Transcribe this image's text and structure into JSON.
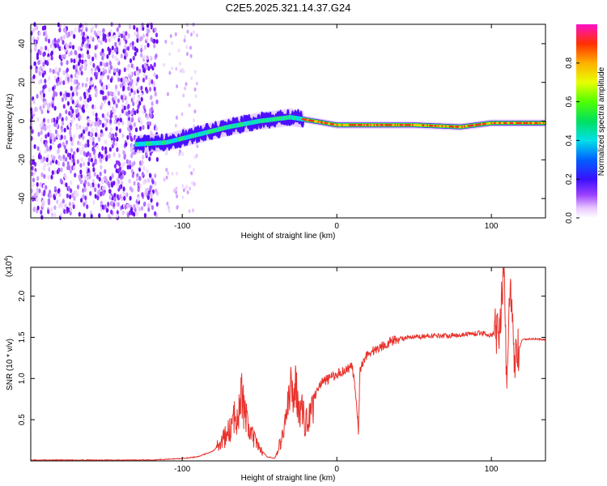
{
  "title": "C2E5.2025.321.14.37.G24",
  "chart_data": [
    {
      "type": "heatmap",
      "xlabel": "Height of straight line (km)",
      "ylabel": "Frequency (Hz)",
      "xlim": [
        -198,
        135
      ],
      "ylim": [
        -50,
        50
      ],
      "xticks": [
        -100,
        0,
        100
      ],
      "yticks": [
        -40,
        -20,
        0,
        20,
        40
      ],
      "colorbar": {
        "label": "Normalized spectral amplitude",
        "range": [
          0,
          1
        ],
        "ticks": [
          0.0,
          0.2,
          0.4,
          0.6,
          0.8
        ]
      },
      "ridge": [
        {
          "x": -130,
          "y": -12
        },
        {
          "x": -110,
          "y": -11
        },
        {
          "x": -90,
          "y": -7
        },
        {
          "x": -70,
          "y": -3
        },
        {
          "x": -50,
          "y": 0
        },
        {
          "x": -30,
          "y": 2
        },
        {
          "x": -22,
          "y": 1
        },
        {
          "x": 0,
          "y": -2
        },
        {
          "x": 50,
          "y": -2
        },
        {
          "x": 80,
          "y": -3
        },
        {
          "x": 100,
          "y": -1
        },
        {
          "x": 135,
          "y": -1
        }
      ]
    },
    {
      "type": "line",
      "xlabel": "Height of straight line (km)",
      "ylabel": "SNR (10 * v/v)",
      "yscale_label": "(x10",
      "yscale_exp": "4",
      "xlim": [
        -198,
        135
      ],
      "ylim": [
        0,
        2.35
      ],
      "xticks": [
        -100,
        0,
        100
      ],
      "yticks": [
        0.5,
        1.0,
        1.5,
        2.0
      ],
      "color": "#e8322c",
      "series": {
        "name": "SNR",
        "x": [
          -198,
          -150,
          -120,
          -110,
          -100,
          -90,
          -80,
          -75,
          -70,
          -65,
          -62,
          -60,
          -58,
          -55,
          -50,
          -45,
          -40,
          -35,
          -33,
          -30,
          -28,
          -25,
          -22,
          -20,
          -18,
          -15,
          -12,
          -10,
          -5,
          0,
          5,
          10,
          12,
          14,
          15,
          18,
          20,
          25,
          30,
          35,
          40,
          50,
          60,
          70,
          80,
          90,
          95,
          100,
          105,
          108,
          110,
          112,
          115,
          120,
          125,
          130,
          135
        ],
        "y": [
          0.01,
          0.01,
          0.01,
          0.02,
          0.03,
          0.05,
          0.12,
          0.22,
          0.35,
          0.55,
          0.85,
          0.6,
          0.45,
          0.3,
          0.15,
          0.05,
          0.03,
          0.3,
          0.55,
          0.8,
          0.95,
          0.75,
          0.55,
          0.45,
          0.6,
          0.75,
          0.9,
          0.95,
          1.0,
          1.05,
          1.1,
          1.15,
          0.85,
          0.35,
          1.1,
          1.25,
          1.3,
          1.35,
          1.4,
          1.45,
          1.48,
          1.5,
          1.52,
          1.52,
          1.53,
          1.55,
          1.55,
          1.52,
          1.6,
          2.3,
          0.95,
          2.1,
          1.2,
          1.47,
          1.48,
          1.48,
          1.47
        ]
      }
    }
  ]
}
